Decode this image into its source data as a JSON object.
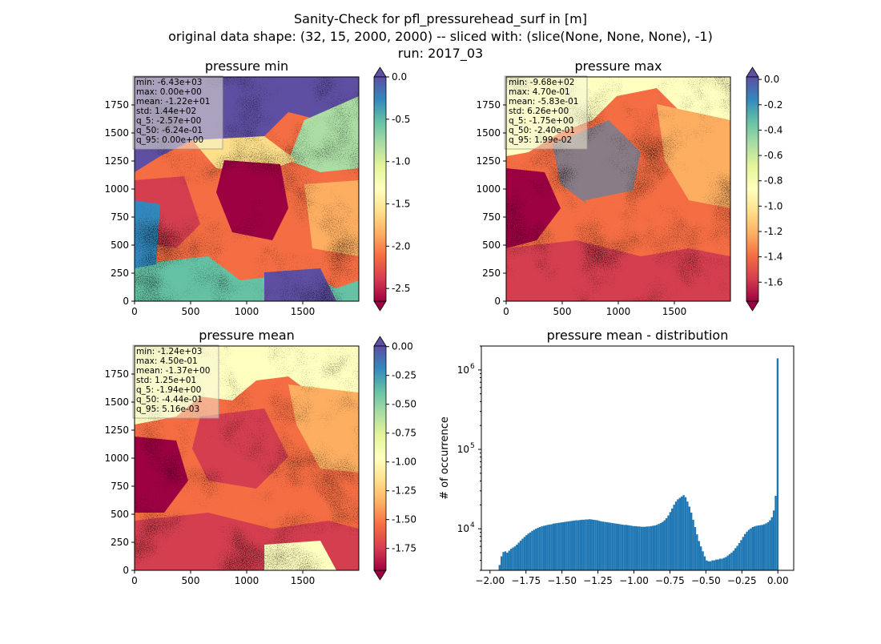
{
  "figure": {
    "title_lines": [
      "Sanity-Check for pfl_pressurehead_surf in [m]",
      "original data shape: (32, 15, 2000, 2000) -- sliced with: (slice(None, None, None), -1)",
      "run: 2017_03"
    ]
  },
  "colors": {
    "cmap": [
      "#9e0142",
      "#d53e4f",
      "#f46d43",
      "#fdae61",
      "#fee08b",
      "#ffffbf",
      "#e6f598",
      "#abdda4",
      "#66c2a5",
      "#3288bd",
      "#5e4fa2"
    ],
    "hist": "#1f77b4"
  },
  "chart_data": [
    {
      "type": "heatmap",
      "title": "pressure min",
      "x_ticks": [
        "0",
        "500",
        "1000",
        "1500"
      ],
      "y_ticks": [
        "0",
        "250",
        "500",
        "750",
        "1000",
        "1250",
        "1500",
        "1750"
      ],
      "xlim": [
        0,
        2000
      ],
      "ylim": [
        0,
        2000
      ],
      "colorbar": {
        "range": [
          -2.65,
          0.0
        ],
        "ticks": [
          "0.0",
          "-0.5",
          "-1.0",
          "-1.5",
          "-2.0",
          "-2.5"
        ],
        "tick_values": [
          0.0,
          -0.5,
          -1.0,
          -1.5,
          -2.0,
          -2.5
        ],
        "extend": "both"
      },
      "stats": [
        "min: -6.43e+03",
        "max: 0.00e+00",
        "mean: -1.22e+01",
        "std: 1.44e+02",
        "q_5: -2.57e+00",
        "q_50: -6.24e-01",
        "q_95: 0.00e+00"
      ]
    },
    {
      "type": "heatmap",
      "title": "pressure max",
      "x_ticks": [
        "0",
        "500",
        "1000",
        "1500"
      ],
      "y_ticks": [
        "0",
        "250",
        "500",
        "750",
        "1000",
        "1250",
        "1500",
        "1750"
      ],
      "xlim": [
        0,
        2000
      ],
      "ylim": [
        0,
        2000
      ],
      "colorbar": {
        "range": [
          -1.75,
          0.02
        ],
        "ticks": [
          "0.0",
          "-0.2",
          "-0.4",
          "-0.6",
          "-0.8",
          "-1.0",
          "-1.2",
          "-1.4",
          "-1.6"
        ],
        "tick_values": [
          0.0,
          -0.2,
          -0.4,
          -0.6,
          -0.8,
          -1.0,
          -1.2,
          -1.4,
          -1.6
        ],
        "extend": "both"
      },
      "stats": [
        "min: -9.68e+02",
        "max: 4.70e-01",
        "mean: -5.83e-01",
        "std: 6.26e+00",
        "q_5: -1.75e+00",
        "q_50: -2.40e-01",
        "q_95: 1.99e-02"
      ]
    },
    {
      "type": "heatmap",
      "title": "pressure mean",
      "x_ticks": [
        "0",
        "500",
        "1000",
        "1500"
      ],
      "y_ticks": [
        "0",
        "250",
        "500",
        "750",
        "1000",
        "1250",
        "1500",
        "1750"
      ],
      "xlim": [
        0,
        2000
      ],
      "ylim": [
        0,
        2000
      ],
      "colorbar": {
        "range": [
          -1.94,
          0.005
        ],
        "ticks": [
          "0.00",
          "-0.25",
          "-0.50",
          "-0.75",
          "-1.00",
          "-1.25",
          "-1.50",
          "-1.75"
        ],
        "tick_values": [
          0.0,
          -0.25,
          -0.5,
          -0.75,
          -1.0,
          -1.25,
          -1.5,
          -1.75
        ],
        "extend": "both"
      },
      "stats": [
        "min: -1.24e+03",
        "max: 4.50e-01",
        "mean: -1.37e+00",
        "std: 1.25e+01",
        "q_5: -1.94e+00",
        "q_50: -4.44e-01",
        "q_95: 5.16e-03"
      ]
    },
    {
      "type": "bar",
      "title": "pressure mean - distribution",
      "ylabel": "# of occurrence",
      "xlabel": "",
      "yscale": "log",
      "xlim": [
        -2.06,
        0.11
      ],
      "ylim": [
        3000,
        2000000
      ],
      "x_ticks": [
        -2.0,
        -1.75,
        -1.5,
        -1.25,
        -1.0,
        -0.75,
        -0.5,
        -0.25,
        0.0
      ],
      "x_tick_labels": [
        "−2.00",
        "−1.75",
        "−1.50",
        "−1.25",
        "−1.00",
        "−0.75",
        "−0.50",
        "−0.25",
        "0.00"
      ],
      "y_tick_values": [
        10000,
        100000,
        1000000
      ],
      "y_tick_labels": [
        "10",
        "10",
        "10"
      ],
      "y_tick_exponents": [
        "4",
        "5",
        "6"
      ],
      "bin_range": [
        -1.94,
        0.005
      ],
      "values": [
        3500,
        4500,
        5100,
        5200,
        5000,
        5300,
        5600,
        5800,
        6000,
        6300,
        6700,
        7100,
        7500,
        7900,
        8300,
        8700,
        9000,
        9400,
        9700,
        10000,
        10300,
        10500,
        10700,
        10900,
        11000,
        11200,
        11300,
        11400,
        11600,
        11700,
        11800,
        11900,
        12000,
        12100,
        12200,
        12300,
        12400,
        12500,
        12600,
        12700,
        12800,
        12800,
        12900,
        13000,
        13000,
        13100,
        13100,
        13200,
        13100,
        13000,
        12900,
        12800,
        12600,
        12400,
        12300,
        12200,
        12100,
        12000,
        11900,
        11800,
        11700,
        11600,
        11500,
        11400,
        11300,
        11200,
        11200,
        11100,
        11000,
        10900,
        10800,
        10800,
        10700,
        10700,
        10600,
        10600,
        10600,
        10700,
        10700,
        10800,
        10900,
        11000,
        11200,
        11500,
        11800,
        12200,
        12800,
        13600,
        14700,
        16200,
        18000,
        20100,
        22000,
        23500,
        24500,
        25500,
        26500,
        25000,
        22000,
        19000,
        16000,
        13000,
        10500,
        8500,
        7000,
        6000,
        5200,
        4500,
        4000,
        3900,
        3900,
        4000,
        4000,
        4100,
        4100,
        4200,
        4200,
        4300,
        4400,
        4600,
        4800,
        5000,
        5300,
        5700,
        6100,
        6600,
        7200,
        7900,
        8600,
        9200,
        9700,
        10100,
        10500,
        10700,
        10900,
        11000,
        11100,
        11200,
        11400,
        11700,
        12100,
        12800,
        14000,
        17000,
        26000,
        1400000
      ]
    }
  ]
}
